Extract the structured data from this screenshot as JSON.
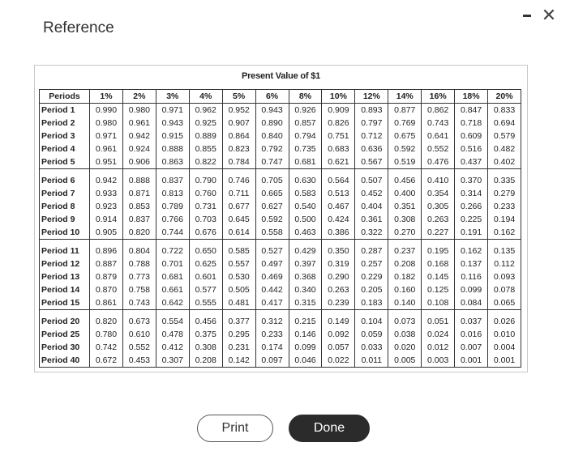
{
  "dialog": {
    "title": "Reference",
    "caption": "Present Value of $1",
    "print_label": "Print",
    "done_label": "Done",
    "close_glyph": "✕"
  },
  "table": {
    "headers": [
      "Periods",
      "1%",
      "2%",
      "3%",
      "4%",
      "5%",
      "6%",
      "8%",
      "10%",
      "12%",
      "14%",
      "16%",
      "18%",
      "20%"
    ],
    "groups": [
      [
        [
          "Period 1",
          "0.990",
          "0.980",
          "0.971",
          "0.962",
          "0.952",
          "0.943",
          "0.926",
          "0.909",
          "0.893",
          "0.877",
          "0.862",
          "0.847",
          "0.833"
        ],
        [
          "Period 2",
          "0.980",
          "0.961",
          "0.943",
          "0.925",
          "0.907",
          "0.890",
          "0.857",
          "0.826",
          "0.797",
          "0.769",
          "0.743",
          "0.718",
          "0.694"
        ],
        [
          "Period 3",
          "0.971",
          "0.942",
          "0.915",
          "0.889",
          "0.864",
          "0.840",
          "0.794",
          "0.751",
          "0.712",
          "0.675",
          "0.641",
          "0.609",
          "0.579"
        ],
        [
          "Period 4",
          "0.961",
          "0.924",
          "0.888",
          "0.855",
          "0.823",
          "0.792",
          "0.735",
          "0.683",
          "0.636",
          "0.592",
          "0.552",
          "0.516",
          "0.482"
        ],
        [
          "Period 5",
          "0.951",
          "0.906",
          "0.863",
          "0.822",
          "0.784",
          "0.747",
          "0.681",
          "0.621",
          "0.567",
          "0.519",
          "0.476",
          "0.437",
          "0.402"
        ]
      ],
      [
        [
          "Period 6",
          "0.942",
          "0.888",
          "0.837",
          "0.790",
          "0.746",
          "0.705",
          "0.630",
          "0.564",
          "0.507",
          "0.456",
          "0.410",
          "0.370",
          "0.335"
        ],
        [
          "Period 7",
          "0.933",
          "0.871",
          "0.813",
          "0.760",
          "0.711",
          "0.665",
          "0.583",
          "0.513",
          "0.452",
          "0.400",
          "0.354",
          "0.314",
          "0.279"
        ],
        [
          "Period 8",
          "0.923",
          "0.853",
          "0.789",
          "0.731",
          "0.677",
          "0.627",
          "0.540",
          "0.467",
          "0.404",
          "0.351",
          "0.305",
          "0.266",
          "0.233"
        ],
        [
          "Period 9",
          "0.914",
          "0.837",
          "0.766",
          "0.703",
          "0.645",
          "0.592",
          "0.500",
          "0.424",
          "0.361",
          "0.308",
          "0.263",
          "0.225",
          "0.194"
        ],
        [
          "Period 10",
          "0.905",
          "0.820",
          "0.744",
          "0.676",
          "0.614",
          "0.558",
          "0.463",
          "0.386",
          "0.322",
          "0.270",
          "0.227",
          "0.191",
          "0.162"
        ]
      ],
      [
        [
          "Period 11",
          "0.896",
          "0.804",
          "0.722",
          "0.650",
          "0.585",
          "0.527",
          "0.429",
          "0.350",
          "0.287",
          "0.237",
          "0.195",
          "0.162",
          "0.135"
        ],
        [
          "Period 12",
          "0.887",
          "0.788",
          "0.701",
          "0.625",
          "0.557",
          "0.497",
          "0.397",
          "0.319",
          "0.257",
          "0.208",
          "0.168",
          "0.137",
          "0.112"
        ],
        [
          "Period 13",
          "0.879",
          "0.773",
          "0.681",
          "0.601",
          "0.530",
          "0.469",
          "0.368",
          "0.290",
          "0.229",
          "0.182",
          "0.145",
          "0.116",
          "0.093"
        ],
        [
          "Period 14",
          "0.870",
          "0.758",
          "0.661",
          "0.577",
          "0.505",
          "0.442",
          "0.340",
          "0.263",
          "0.205",
          "0.160",
          "0.125",
          "0.099",
          "0.078"
        ],
        [
          "Period 15",
          "0.861",
          "0.743",
          "0.642",
          "0.555",
          "0.481",
          "0.417",
          "0.315",
          "0.239",
          "0.183",
          "0.140",
          "0.108",
          "0.084",
          "0.065"
        ]
      ],
      [
        [
          "Period 20",
          "0.820",
          "0.673",
          "0.554",
          "0.456",
          "0.377",
          "0.312",
          "0.215",
          "0.149",
          "0.104",
          "0.073",
          "0.051",
          "0.037",
          "0.026"
        ],
        [
          "Period 25",
          "0.780",
          "0.610",
          "0.478",
          "0.375",
          "0.295",
          "0.233",
          "0.146",
          "0.092",
          "0.059",
          "0.038",
          "0.024",
          "0.016",
          "0.010"
        ],
        [
          "Period 30",
          "0.742",
          "0.552",
          "0.412",
          "0.308",
          "0.231",
          "0.174",
          "0.099",
          "0.057",
          "0.033",
          "0.020",
          "0.012",
          "0.007",
          "0.004"
        ],
        [
          "Period 40",
          "0.672",
          "0.453",
          "0.307",
          "0.208",
          "0.142",
          "0.097",
          "0.046",
          "0.022",
          "0.011",
          "0.005",
          "0.003",
          "0.001",
          "0.001"
        ]
      ]
    ]
  }
}
